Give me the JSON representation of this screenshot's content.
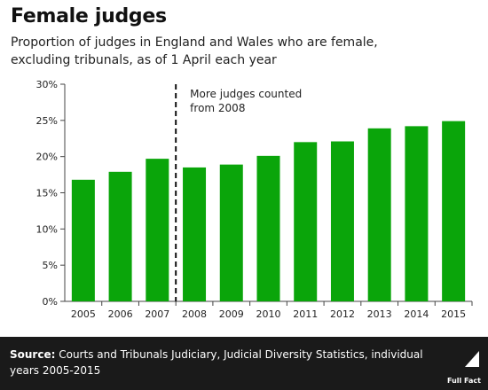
{
  "header": {
    "title": "Female judges",
    "subtitle_line1": "Proportion of judges in England and Wales who are female,",
    "subtitle_line2": "excluding tribunals, as of 1 April each year"
  },
  "footer": {
    "source_label": "Source:",
    "source_text": "Courts and Tribunals Judiciary, Judicial Diversity Statistics, individual years 2005-2015",
    "brand": "Full Fact",
    "brand_icon": "full-fact-logo-icon"
  },
  "colors": {
    "bar": "#0aa50a",
    "footer_bg": "#1a1a1a",
    "divider": "#111111"
  },
  "chart_data": {
    "type": "bar",
    "categories": [
      "2005",
      "2006",
      "2007",
      "2008",
      "2009",
      "2010",
      "2011",
      "2012",
      "2013",
      "2014",
      "2015"
    ],
    "values": [
      16.8,
      17.9,
      19.7,
      18.5,
      18.9,
      20.1,
      22.0,
      22.1,
      23.9,
      24.2,
      24.9
    ],
    "ylim": [
      0,
      30
    ],
    "yticks": [
      0,
      5,
      10,
      15,
      20,
      25,
      30
    ],
    "ytick_format": "%",
    "grid": false,
    "annotation": {
      "text_line1": "More judges counted",
      "text_line2": "from 2008",
      "between_categories": [
        "2007",
        "2008"
      ],
      "style": "dashed-vertical-line"
    }
  }
}
